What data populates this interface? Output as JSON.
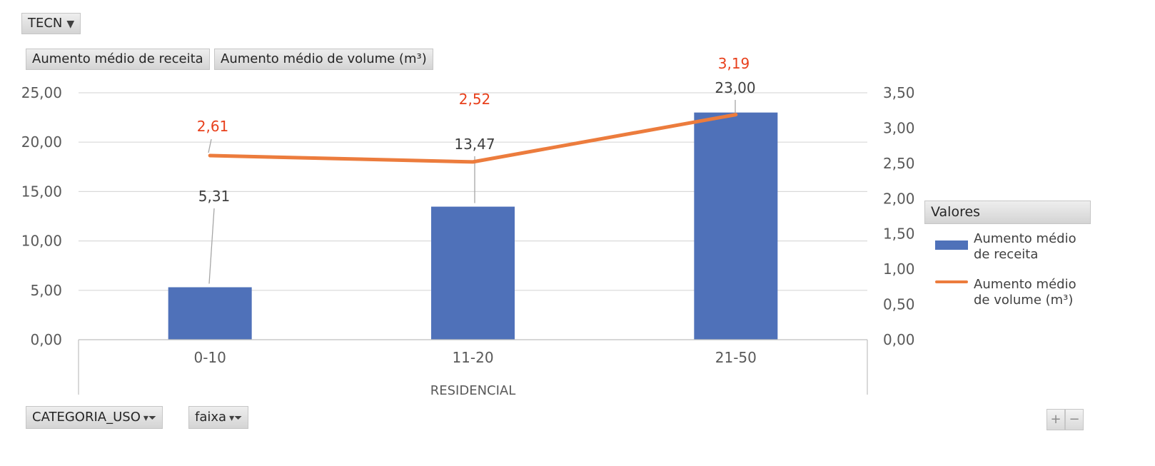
{
  "filters": {
    "report_filter": "TECN",
    "value_fields": [
      "Aumento médio de receita",
      "Aumento médio de volume (m³)"
    ],
    "axis_fields": [
      "CATEGORIA_USO",
      "faixa"
    ]
  },
  "legend": {
    "title": "Valores",
    "items": [
      "Aumento médio de receita",
      "Aumento médio de volume (m³)"
    ]
  },
  "zoom": {
    "plus": "+",
    "minus": "−"
  },
  "colors": {
    "bar": "#4f71b9",
    "line": "#ec7c3d",
    "line_label": "#e8401c",
    "grid": "#d9d9d9"
  },
  "chart_data": {
    "type": "bar",
    "categories": [
      "0-10",
      "11-20",
      "21-50"
    ],
    "category_group": "RESIDENCIAL",
    "series": [
      {
        "name": "Aumento médio de receita",
        "type": "bar",
        "axis": "left",
        "values": [
          5.31,
          13.47,
          23.0
        ],
        "labels": [
          "5,31",
          "13,47",
          "23,00"
        ]
      },
      {
        "name": "Aumento médio de volume (m³)",
        "type": "line",
        "axis": "right",
        "values": [
          2.61,
          2.52,
          3.19
        ],
        "labels": [
          "2,61",
          "2,52",
          "3,19"
        ]
      }
    ],
    "y_left": {
      "lim": [
        0,
        25
      ],
      "ticks": [
        "0,00",
        "5,00",
        "10,00",
        "15,00",
        "20,00",
        "25,00"
      ]
    },
    "y_right": {
      "lim": [
        0,
        3.5
      ],
      "ticks": [
        "0,00",
        "0,50",
        "1,00",
        "1,50",
        "2,00",
        "2,50",
        "3,00",
        "3,50"
      ]
    },
    "grid": true,
    "legend_position": "right"
  }
}
